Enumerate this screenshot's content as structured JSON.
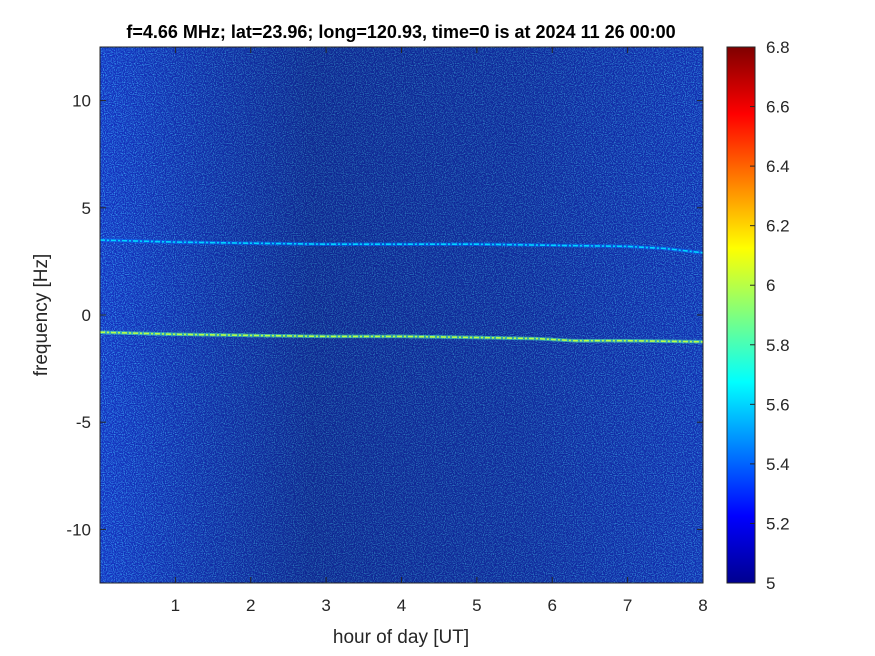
{
  "chart_data": {
    "type": "heatmap",
    "title": "f=4.66 MHz;  lat=23.96; long=120.93, time=0 is at 2024 11 26 00:00",
    "xlabel": "hour of day [UT]",
    "ylabel": "frequency [Hz]",
    "xlim": [
      0,
      8
    ],
    "ylim": [
      -12.5,
      12.5
    ],
    "x_ticks": [
      1,
      2,
      3,
      4,
      5,
      6,
      7,
      8
    ],
    "y_ticks": [
      10,
      5,
      0,
      -5,
      -10
    ],
    "colorbar": {
      "range": [
        5,
        6.8
      ],
      "ticks": [
        "6.8",
        "6.6",
        "6.4",
        "6.2",
        "6",
        "5.8",
        "5.6",
        "5.4",
        "5.2",
        "5"
      ],
      "colormap": "jet"
    },
    "background_level": 5.2,
    "traces": [
      {
        "description": "upper Doppler trace",
        "x": [
          0,
          1,
          2,
          3,
          4,
          5,
          6,
          7,
          7.5,
          8
        ],
        "y": [
          3.5,
          3.4,
          3.35,
          3.3,
          3.3,
          3.3,
          3.25,
          3.2,
          3.1,
          2.9
        ],
        "level": 5.6
      },
      {
        "description": "main Doppler trace",
        "x": [
          0,
          1,
          2,
          3,
          4,
          5,
          5.8,
          6.3,
          7,
          8
        ],
        "y": [
          -0.8,
          -0.9,
          -0.95,
          -1.0,
          -1.0,
          -1.05,
          -1.1,
          -1.2,
          -1.2,
          -1.25
        ],
        "level": 6.0
      }
    ]
  }
}
